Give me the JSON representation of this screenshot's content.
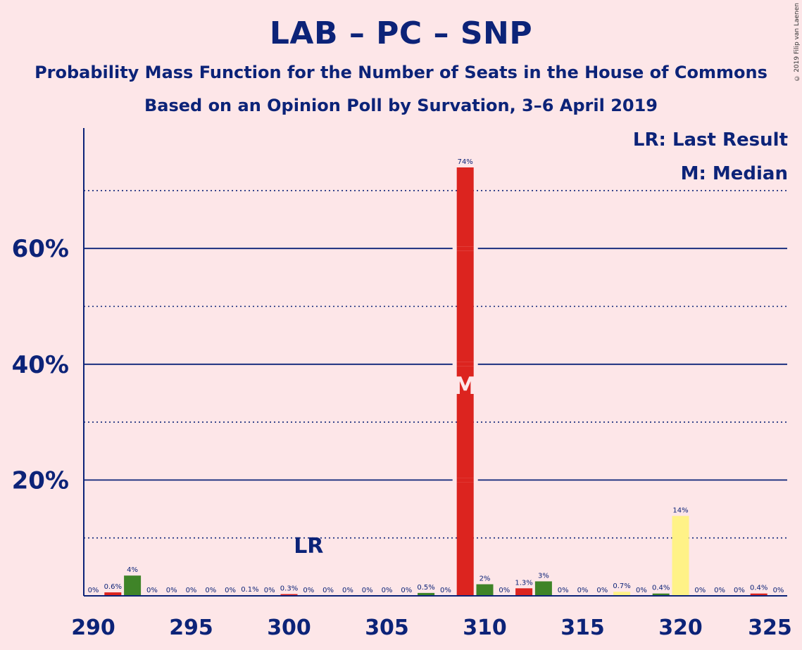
{
  "copyright": "© 2019 Filip van Laenen",
  "legend": {
    "last_result": "LR: Last Result",
    "median": "M: Median"
  },
  "colors": {
    "background": "#fde6e8",
    "text": "#0c2378",
    "lab": "#dc241f",
    "pc": "#3f8428",
    "snp": "#fff287"
  },
  "chart_data": {
    "type": "bar",
    "title": "LAB – PC – SNP",
    "subtitle": "Probability Mass Function for the Number of Seats in the House of Commons",
    "subtitle2": "Based on an Opinion Poll by Survation, 3–6 April 2019",
    "xlabel": "",
    "ylabel": "",
    "xlim": [
      290,
      325
    ],
    "ylim": [
      0,
      80
    ],
    "x_ticks": [
      290,
      295,
      300,
      305,
      310,
      315,
      320,
      325
    ],
    "y_ticks_major": [
      20,
      40,
      60
    ],
    "y_ticks_major_labels": [
      "20%",
      "40%",
      "60%"
    ],
    "y_gridlines_dotted": [
      10,
      30,
      50,
      70
    ],
    "last_result_seat": 301,
    "last_result_label": "LR",
    "median_seat": 309,
    "median_label": "M",
    "bars": [
      {
        "seat": 290,
        "value": 0,
        "label": "0%",
        "color": "lab"
      },
      {
        "seat": 291,
        "value": 0.6,
        "label": "0.6%",
        "color": "lab"
      },
      {
        "seat": 292,
        "value": 3.5,
        "label": "4%",
        "color": "pc"
      },
      {
        "seat": 293,
        "value": 0,
        "label": "0%",
        "color": "lab"
      },
      {
        "seat": 294,
        "value": 0,
        "label": "0%",
        "color": "lab"
      },
      {
        "seat": 295,
        "value": 0,
        "label": "0%",
        "color": "lab"
      },
      {
        "seat": 296,
        "value": 0,
        "label": "0%",
        "color": "lab"
      },
      {
        "seat": 297,
        "value": 0,
        "label": "0%",
        "color": "lab"
      },
      {
        "seat": 298,
        "value": 0.1,
        "label": "0.1%",
        "color": "lab"
      },
      {
        "seat": 299,
        "value": 0,
        "label": "0%",
        "color": "lab"
      },
      {
        "seat": 300,
        "value": 0.3,
        "label": "0.3%",
        "color": "lab"
      },
      {
        "seat": 301,
        "value": 0,
        "label": "0%",
        "color": "lab"
      },
      {
        "seat": 302,
        "value": 0,
        "label": "0%",
        "color": "lab"
      },
      {
        "seat": 303,
        "value": 0,
        "label": "0%",
        "color": "lab"
      },
      {
        "seat": 304,
        "value": 0,
        "label": "0%",
        "color": "lab"
      },
      {
        "seat": 305,
        "value": 0,
        "label": "0%",
        "color": "lab"
      },
      {
        "seat": 306,
        "value": 0,
        "label": "0%",
        "color": "lab"
      },
      {
        "seat": 307,
        "value": 0.5,
        "label": "0.5%",
        "color": "pc"
      },
      {
        "seat": 308,
        "value": 0,
        "label": "0%",
        "color": "lab"
      },
      {
        "seat": 309,
        "value": 74,
        "label": "74%",
        "color": "lab"
      },
      {
        "seat": 310,
        "value": 2,
        "label": "2%",
        "color": "pc"
      },
      {
        "seat": 311,
        "value": 0,
        "label": "0%",
        "color": "lab"
      },
      {
        "seat": 312,
        "value": 1.3,
        "label": "1.3%",
        "color": "lab"
      },
      {
        "seat": 313,
        "value": 2.5,
        "label": "3%",
        "color": "pc"
      },
      {
        "seat": 314,
        "value": 0,
        "label": "0%",
        "color": "lab"
      },
      {
        "seat": 315,
        "value": 0,
        "label": "0%",
        "color": "lab"
      },
      {
        "seat": 316,
        "value": 0,
        "label": "0%",
        "color": "lab"
      },
      {
        "seat": 317,
        "value": 0.7,
        "label": "0.7%",
        "color": "snp"
      },
      {
        "seat": 318,
        "value": 0,
        "label": "0%",
        "color": "lab"
      },
      {
        "seat": 319,
        "value": 0.4,
        "label": "0.4%",
        "color": "pc"
      },
      {
        "seat": 320,
        "value": 13.8,
        "label": "14%",
        "color": "snp"
      },
      {
        "seat": 321,
        "value": 0,
        "label": "0%",
        "color": "lab"
      },
      {
        "seat": 322,
        "value": 0,
        "label": "0%",
        "color": "lab"
      },
      {
        "seat": 323,
        "value": 0,
        "label": "0%",
        "color": "lab"
      },
      {
        "seat": 324,
        "value": 0.4,
        "label": "0.4%",
        "color": "lab"
      },
      {
        "seat": 325,
        "value": 0,
        "label": "0%",
        "color": "lab"
      }
    ]
  }
}
